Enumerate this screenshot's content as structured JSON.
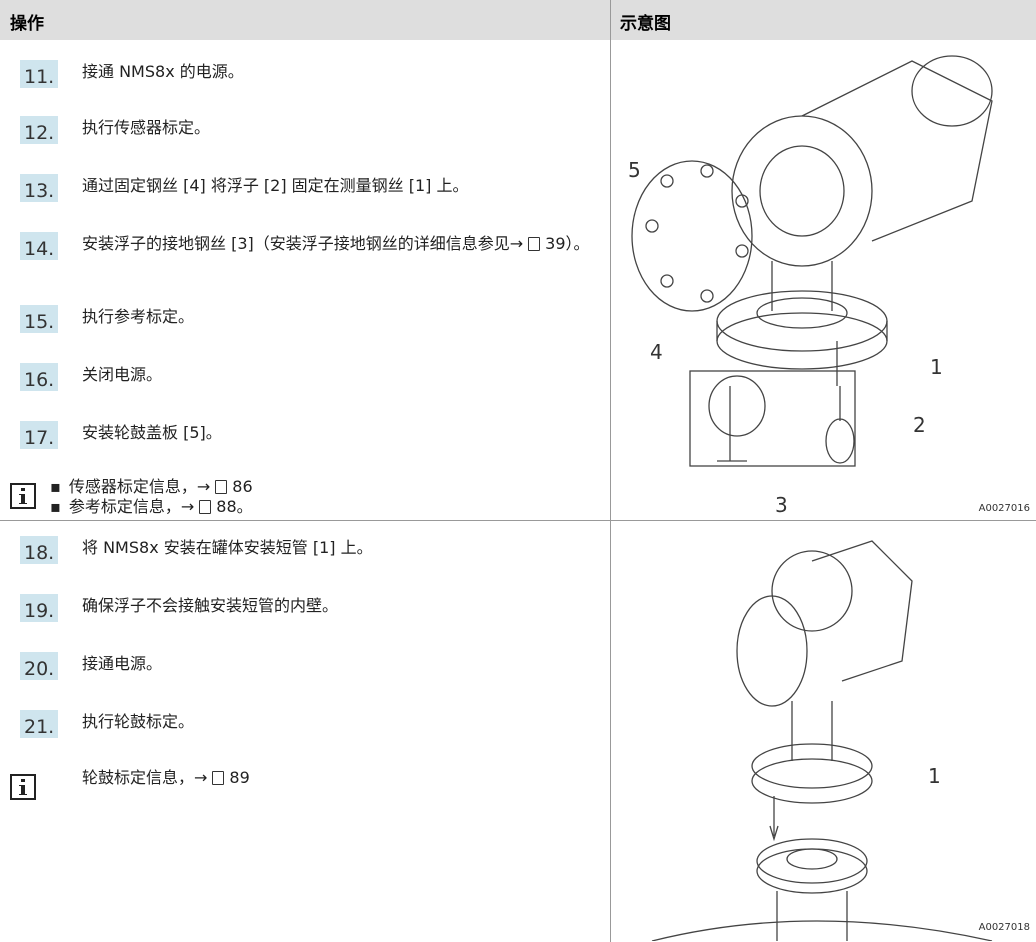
{
  "table": {
    "headers": [
      "操作",
      "示意图"
    ],
    "rows": [
      {
        "steps": [
          {
            "number": "11.",
            "text": "接通 NMS8x 的电源。"
          },
          {
            "number": "12.",
            "text": "执行传感器标定。"
          },
          {
            "number": "13.",
            "text": "通过固定钢丝 [4] 将浮子 [2] 固定在测量钢丝 [1] 上。"
          },
          {
            "number": "14.",
            "text": "安装浮子的接地钢丝 [3]（安装浮子接地钢丝的详细信息参见→",
            "page": "39",
            "after": "）。"
          },
          {
            "number": "15.",
            "text": "执行参考标定。"
          },
          {
            "number": "16.",
            "text": "关闭电源。"
          },
          {
            "number": "17.",
            "text": "安装轮鼓盖板 [5]。"
          }
        ],
        "notes": [
          {
            "text": "传感器标定信息，→",
            "page": "86"
          },
          {
            "text": "参考标定信息，→",
            "page": "88",
            "after": "。"
          }
        ],
        "figure": {
          "callouts": [
            "5",
            "4",
            "1",
            "2",
            "3"
          ],
          "code": "A0027016"
        }
      },
      {
        "steps": [
          {
            "number": "18.",
            "text": "将 NMS8x 安装在罐体安装短管 [1] 上。"
          },
          {
            "number": "19.",
            "text": "确保浮子不会接触安装短管的内壁。"
          },
          {
            "number": "20.",
            "text": "接通电源。"
          },
          {
            "number": "21.",
            "text": "执行轮鼓标定。"
          }
        ],
        "notes": [
          {
            "text": "轮鼓标定信息，→",
            "page": "89"
          }
        ],
        "figure": {
          "callouts": [
            "1"
          ],
          "code": "A0027018"
        }
      }
    ]
  }
}
